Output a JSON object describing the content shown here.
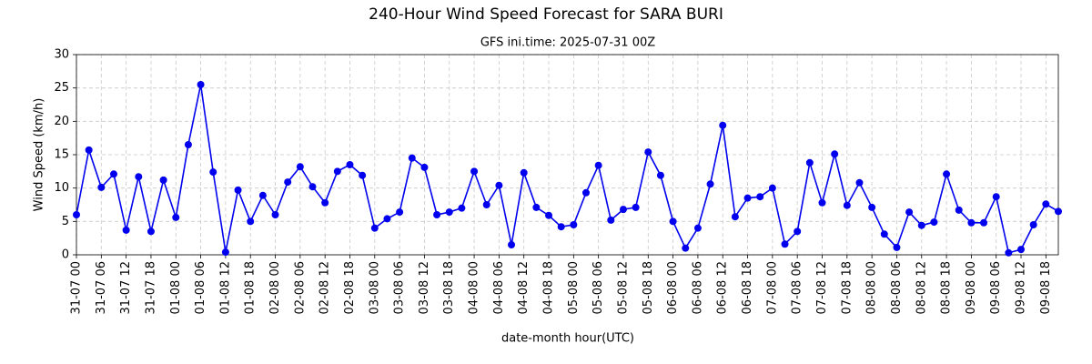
{
  "chart_data": {
    "type": "line",
    "title": "240-Hour Wind Speed Forecast for SARA BURI",
    "subtitle": "GFS ini.time: 2025-07-31 00Z",
    "x_label": "date-month hour(UTC)",
    "y_label": "Wind Speed (km/h)",
    "categories": [
      "31-07 00",
      null,
      "31-07 06",
      null,
      "31-07 12",
      null,
      "31-07 18",
      null,
      "01-08 00",
      null,
      "01-08 06",
      null,
      "01-08 12",
      null,
      "01-08 18",
      null,
      "02-08 00",
      null,
      "02-08 06",
      null,
      "02-08 12",
      null,
      "02-08 18",
      null,
      "03-08 00",
      null,
      "03-08 06",
      null,
      "03-08 12",
      null,
      "03-08 18",
      null,
      "04-08 00",
      null,
      "04-08 06",
      null,
      "04-08 12",
      null,
      "04-08 18",
      null,
      "05-08 00",
      null,
      "05-08 06",
      null,
      "05-08 12",
      null,
      "05-08 18",
      null,
      "06-08 00",
      null,
      "06-08 06",
      null,
      "06-08 12",
      null,
      "06-08 18",
      null,
      "07-08 00",
      null,
      "07-08 06",
      null,
      "07-08 12",
      null,
      "07-08 18",
      null,
      "08-08 00",
      null,
      "08-08 06",
      null,
      "08-08 12",
      null,
      "08-08 18",
      null,
      "09-08 00",
      null,
      "09-08 06",
      null,
      "09-08 12",
      null,
      "09-08 18",
      null
    ],
    "values": [
      6.0,
      15.7,
      10.1,
      12.1,
      3.7,
      11.7,
      3.5,
      11.2,
      5.6,
      16.5,
      25.5,
      12.4,
      0.4,
      9.7,
      5.0,
      8.9,
      6.0,
      10.9,
      13.2,
      10.2,
      7.8,
      12.5,
      13.5,
      11.9,
      4.0,
      5.4,
      6.4,
      14.5,
      13.1,
      6.0,
      6.4,
      7.0,
      12.5,
      7.5,
      10.4,
      1.5,
      12.3,
      7.1,
      5.9,
      4.2,
      4.5,
      9.3,
      13.4,
      5.2,
      6.8,
      7.1,
      15.4,
      11.9,
      5.0,
      1.0,
      4.0,
      10.6,
      19.4,
      5.7,
      8.5,
      8.7,
      10.0,
      1.6,
      3.5,
      13.8,
      7.8,
      15.1,
      7.4,
      10.8,
      7.1,
      3.1,
      1.1,
      6.4,
      4.4,
      4.9,
      12.1,
      6.7,
      4.8,
      4.8,
      8.7,
      0.3,
      0.8,
      4.5,
      7.6,
      6.5
    ],
    "color": "#0000ee",
    "ylim": [
      0,
      30
    ],
    "yticks": [
      0,
      5,
      10,
      15,
      20,
      25,
      30
    ],
    "grid": true
  }
}
